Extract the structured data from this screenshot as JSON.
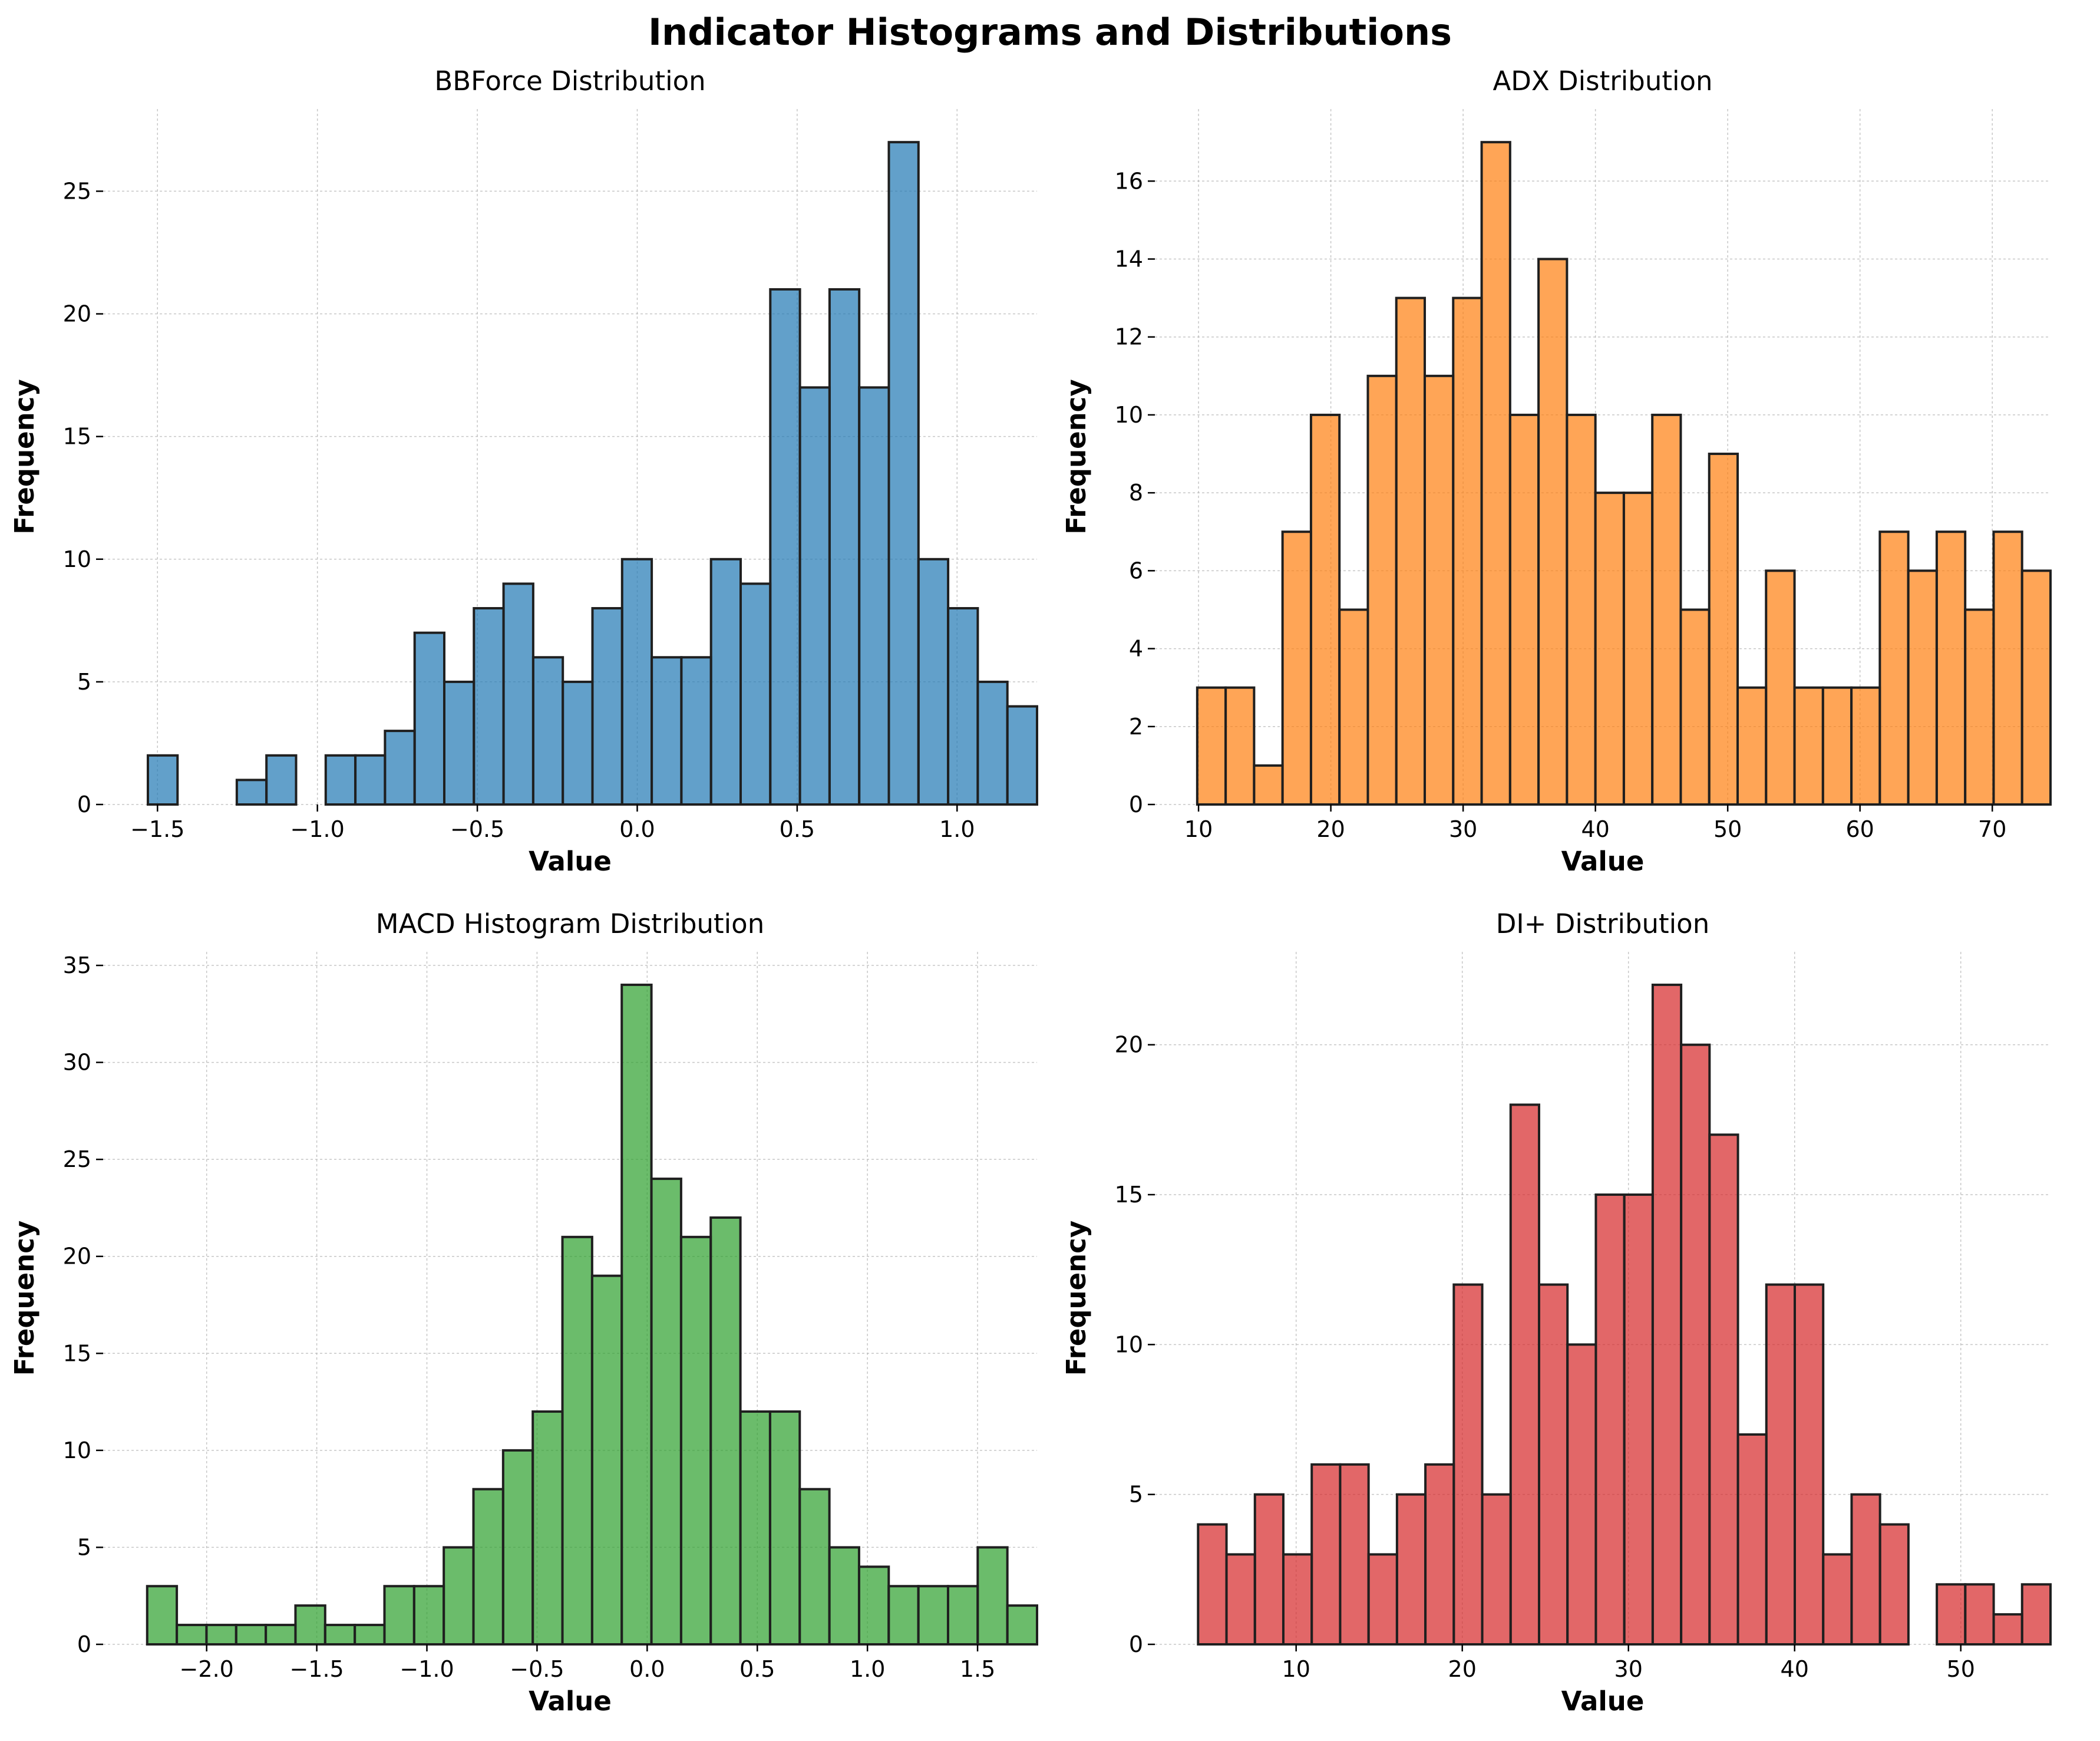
{
  "figure": {
    "title": "Indicator Histograms and Distributions"
  },
  "chart_data": [
    {
      "type": "bar",
      "title": "BBForce Distribution",
      "xlabel": "Value",
      "ylabel": "Frequency",
      "color": "#1f77b4",
      "bin_edges_range": [
        -1.53,
        1.25
      ],
      "bin_count": 30,
      "values": [
        2,
        0,
        0,
        1,
        2,
        0,
        2,
        2,
        3,
        7,
        5,
        8,
        9,
        6,
        5,
        8,
        10,
        6,
        6,
        10,
        9,
        21,
        17,
        21,
        17,
        27,
        10,
        8,
        5,
        4
      ],
      "xlim": [
        -1.67,
        1.25
      ],
      "ylim": [
        0,
        28.35
      ],
      "xticks": [
        -1.5,
        -1.0,
        -0.5,
        0.0,
        0.5,
        1.0
      ],
      "xtick_labels": [
        "−1.5",
        "−1.0",
        "−0.5",
        "0.0",
        "0.5",
        "1.0"
      ],
      "yticks": [
        0,
        5,
        10,
        15,
        20,
        25
      ],
      "ytick_labels": [
        "0",
        "5",
        "10",
        "15",
        "20",
        "25"
      ],
      "grid": true
    },
    {
      "type": "bar",
      "title": "ADX Distribution",
      "xlabel": "Value",
      "ylabel": "Frequency",
      "color": "#ff7f0e",
      "bin_edges_range": [
        9.9,
        74.4
      ],
      "bin_count": 30,
      "values": [
        3,
        3,
        1,
        7,
        10,
        5,
        11,
        13,
        11,
        13,
        17,
        10,
        14,
        10,
        8,
        8,
        10,
        5,
        9,
        3,
        6,
        3,
        3,
        3,
        7,
        6,
        7,
        5,
        7,
        6
      ],
      "xlim": [
        6.7,
        74.4
      ],
      "ylim": [
        0,
        17.85
      ],
      "xticks": [
        10,
        20,
        30,
        40,
        50,
        60,
        70
      ],
      "xtick_labels": [
        "10",
        "20",
        "30",
        "40",
        "50",
        "60",
        "70"
      ],
      "yticks": [
        0,
        2,
        4,
        6,
        8,
        10,
        12,
        14,
        16
      ],
      "ytick_labels": [
        "0",
        "2",
        "4",
        "6",
        "8",
        "10",
        "12",
        "14",
        "16"
      ],
      "grid": true
    },
    {
      "type": "bar",
      "title": "MACD Histogram Distribution",
      "xlabel": "Value",
      "ylabel": "Frequency",
      "color": "#2ca02c",
      "bin_edges_range": [
        -2.27,
        1.77
      ],
      "bin_count": 30,
      "values": [
        3,
        1,
        1,
        1,
        1,
        2,
        1,
        1,
        3,
        3,
        5,
        8,
        10,
        12,
        21,
        19,
        34,
        24,
        21,
        22,
        12,
        12,
        8,
        5,
        4,
        3,
        3,
        3,
        5,
        2
      ],
      "xlim": [
        -2.47,
        1.77
      ],
      "ylim": [
        0,
        35.7
      ],
      "xticks": [
        -2.0,
        -1.5,
        -1.0,
        -0.5,
        0.0,
        0.5,
        1.0,
        1.5
      ],
      "xtick_labels": [
        "−2.0",
        "−1.5",
        "−1.0",
        "−0.5",
        "0.0",
        "0.5",
        "1.0",
        "1.5"
      ],
      "yticks": [
        0,
        5,
        10,
        15,
        20,
        25,
        30,
        35
      ],
      "ytick_labels": [
        "0",
        "5",
        "10",
        "15",
        "20",
        "25",
        "30",
        "35"
      ],
      "grid": true
    },
    {
      "type": "bar",
      "title": "DI+ Distribution",
      "xlabel": "Value",
      "ylabel": "Frequency",
      "color": "#d62728",
      "bin_edges_range": [
        4.1,
        55.4
      ],
      "bin_count": 30,
      "values": [
        4,
        3,
        5,
        3,
        6,
        6,
        3,
        5,
        6,
        12,
        5,
        18,
        12,
        10,
        15,
        15,
        22,
        20,
        17,
        7,
        12,
        12,
        3,
        5,
        4,
        0,
        2,
        2,
        1,
        2
      ],
      "xlim": [
        1.5,
        55.4
      ],
      "ylim": [
        0,
        23.1
      ],
      "xticks": [
        10,
        20,
        30,
        40,
        50
      ],
      "xtick_labels": [
        "10",
        "20",
        "30",
        "40",
        "50"
      ],
      "yticks": [
        0,
        5,
        10,
        15,
        20
      ],
      "ytick_labels": [
        "0",
        "5",
        "10",
        "15",
        "20"
      ],
      "grid": true
    }
  ]
}
